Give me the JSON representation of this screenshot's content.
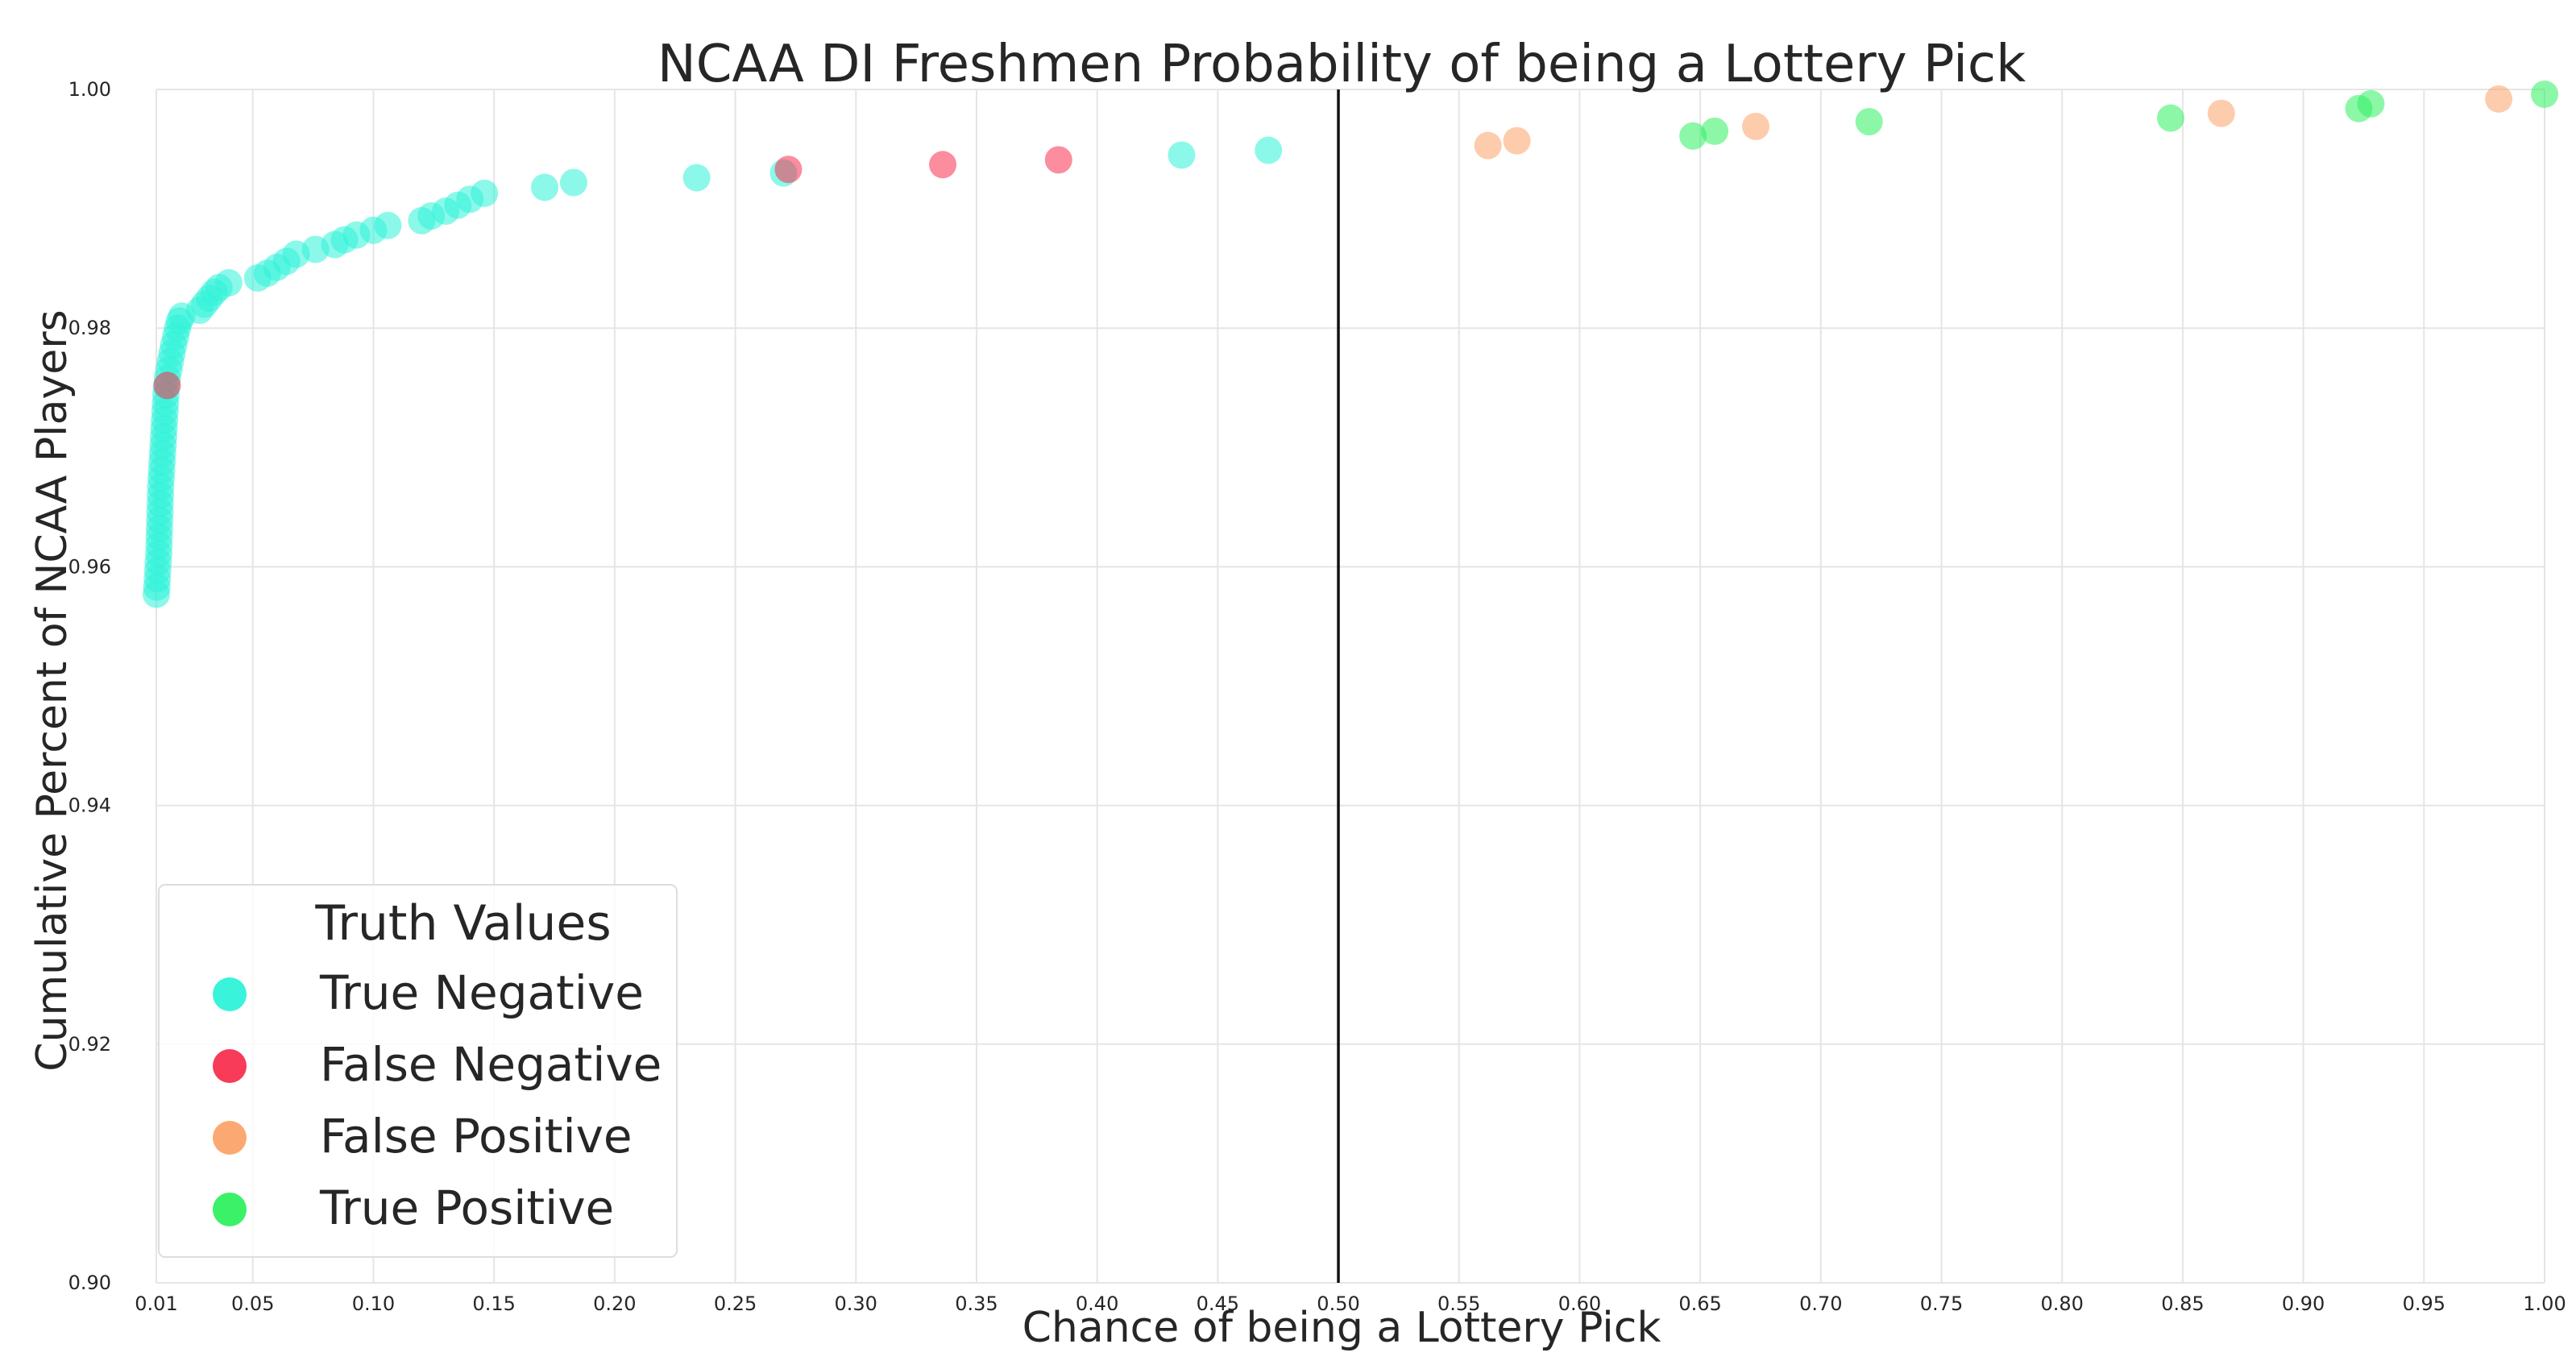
{
  "chart_data": {
    "type": "scatter",
    "title": "NCAA DI Freshmen Probability of being a Lottery Pick",
    "xlabel": "Chance of being a Lottery Pick",
    "ylabel": "Cumulative Percent of NCAA Players",
    "xlim": [
      0.01,
      1.0
    ],
    "ylim": [
      0.9,
      1.0
    ],
    "xticks": [
      "0.01",
      "0.05",
      "0.10",
      "0.15",
      "0.20",
      "0.25",
      "0.30",
      "0.35",
      "0.40",
      "0.45",
      "0.50",
      "0.55",
      "0.60",
      "0.65",
      "0.70",
      "0.75",
      "0.80",
      "0.85",
      "0.90",
      "0.95",
      "1.00"
    ],
    "yticks": [
      "0.90",
      "0.92",
      "0.94",
      "0.96",
      "0.98",
      "1.00"
    ],
    "grid": true,
    "threshold_line": 0.5,
    "legend": {
      "title": "Truth Values",
      "placement": "lower-left"
    },
    "series": [
      {
        "name": "True Negative",
        "color": "#2ef2d9",
        "points": [
          [
            0.01,
            0.9577
          ],
          [
            0.0102,
            0.9583
          ],
          [
            0.0104,
            0.959
          ],
          [
            0.0106,
            0.9597
          ],
          [
            0.0108,
            0.9604
          ],
          [
            0.011,
            0.9611
          ],
          [
            0.0111,
            0.9618
          ],
          [
            0.0112,
            0.9625
          ],
          [
            0.0113,
            0.9632
          ],
          [
            0.0114,
            0.9639
          ],
          [
            0.0115,
            0.9646
          ],
          [
            0.0116,
            0.9653
          ],
          [
            0.0117,
            0.966
          ],
          [
            0.0118,
            0.9667
          ],
          [
            0.012,
            0.9674
          ],
          [
            0.0122,
            0.9681
          ],
          [
            0.0124,
            0.9688
          ],
          [
            0.0126,
            0.9695
          ],
          [
            0.0128,
            0.9702
          ],
          [
            0.013,
            0.9709
          ],
          [
            0.0132,
            0.9716
          ],
          [
            0.0134,
            0.9723
          ],
          [
            0.0136,
            0.973
          ],
          [
            0.0138,
            0.9737
          ],
          [
            0.014,
            0.9744
          ],
          [
            0.0142,
            0.9751
          ],
          [
            0.0146,
            0.9758
          ],
          [
            0.0152,
            0.9765
          ],
          [
            0.0158,
            0.9772
          ],
          [
            0.0165,
            0.9779
          ],
          [
            0.0172,
            0.9786
          ],
          [
            0.018,
            0.9793
          ],
          [
            0.0188,
            0.98
          ],
          [
            0.0196,
            0.9806
          ],
          [
            0.0206,
            0.981
          ],
          [
            0.028,
            0.9815
          ],
          [
            0.03,
            0.982
          ],
          [
            0.032,
            0.9825
          ],
          [
            0.034,
            0.983
          ],
          [
            0.036,
            0.9834
          ],
          [
            0.04,
            0.9838
          ],
          [
            0.052,
            0.9842
          ],
          [
            0.056,
            0.9846
          ],
          [
            0.06,
            0.9851
          ],
          [
            0.064,
            0.9856
          ],
          [
            0.068,
            0.9862
          ],
          [
            0.076,
            0.9866
          ],
          [
            0.084,
            0.987
          ],
          [
            0.088,
            0.9874
          ],
          [
            0.093,
            0.9878
          ],
          [
            0.1,
            0.9882
          ],
          [
            0.106,
            0.9886
          ],
          [
            0.12,
            0.989
          ],
          [
            0.124,
            0.9894
          ],
          [
            0.13,
            0.9898
          ],
          [
            0.135,
            0.9903
          ],
          [
            0.14,
            0.9908
          ],
          [
            0.146,
            0.9913
          ],
          [
            0.171,
            0.9918
          ],
          [
            0.183,
            0.9922
          ],
          [
            0.234,
            0.9926
          ],
          [
            0.27,
            0.993
          ],
          [
            0.435,
            0.9945
          ],
          [
            0.471,
            0.9949
          ]
        ]
      },
      {
        "name": "False Negative",
        "color": "#f7304f",
        "points": [
          [
            0.0145,
            0.9752
          ],
          [
            0.272,
            0.9933
          ],
          [
            0.336,
            0.9937
          ],
          [
            0.384,
            0.9941
          ]
        ]
      },
      {
        "name": "False Positive",
        "color": "#fca36a",
        "points": [
          [
            0.562,
            0.9953
          ],
          [
            0.574,
            0.9957
          ],
          [
            0.673,
            0.9969
          ],
          [
            0.866,
            0.998
          ],
          [
            0.981,
            0.9992
          ]
        ]
      },
      {
        "name": "True Positive",
        "color": "#30f060",
        "points": [
          [
            0.647,
            0.9961
          ],
          [
            0.656,
            0.9965
          ],
          [
            0.72,
            0.9973
          ],
          [
            0.845,
            0.9976
          ],
          [
            0.923,
            0.9984
          ],
          [
            0.928,
            0.9988
          ],
          [
            1.0,
            0.9996
          ]
        ]
      }
    ]
  }
}
